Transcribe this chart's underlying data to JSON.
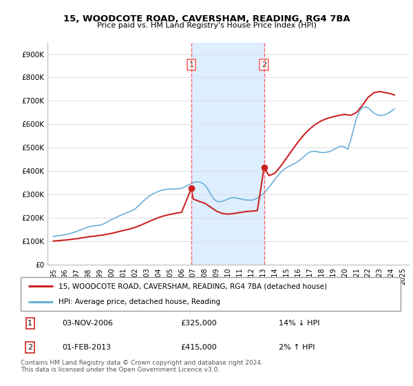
{
  "title": "15, WOODCOTE ROAD, CAVERSHAM, READING, RG4 7BA",
  "subtitle": "Price paid vs. HM Land Registry's House Price Index (HPI)",
  "legend_line1": "15, WOODCOTE ROAD, CAVERSHAM, READING, RG4 7BA (detached house)",
  "legend_line2": "HPI: Average price, detached house, Reading",
  "annotation1_date": "03-NOV-2006",
  "annotation1_price": "£325,000",
  "annotation1_hpi": "14% ↓ HPI",
  "annotation2_date": "01-FEB-2013",
  "annotation2_price": "£415,000",
  "annotation2_hpi": "2% ↑ HPI",
  "footnote": "Contains HM Land Registry data © Crown copyright and database right 2024.\nThis data is licensed under the Open Government Licence v3.0.",
  "vline1_x": 2006.84,
  "vline2_x": 2013.08,
  "sale1_x": 2006.84,
  "sale1_y": 325000,
  "sale2_x": 2013.08,
  "sale2_y": 415000,
  "hpi_color": "#6ab0d8",
  "price_color": "#cc2222",
  "vline_color": "#ff6666",
  "highlight_bg_color": "#ddeeff",
  "ylim_min": 0,
  "ylim_max": 950000,
  "xlim_min": 1994.5,
  "xlim_max": 2025.5,
  "yticks": [
    0,
    100000,
    200000,
    300000,
    400000,
    500000,
    600000,
    700000,
    800000,
    900000
  ],
  "ytick_labels": [
    "£0",
    "£100K",
    "£200K",
    "£300K",
    "£400K",
    "£500K",
    "£600K",
    "£700K",
    "£800K",
    "£900K"
  ],
  "xticks": [
    1995,
    1996,
    1997,
    1998,
    1999,
    2000,
    2001,
    2002,
    2003,
    2004,
    2005,
    2006,
    2007,
    2008,
    2009,
    2010,
    2011,
    2012,
    2013,
    2014,
    2015,
    2016,
    2017,
    2018,
    2019,
    2020,
    2021,
    2022,
    2023,
    2024,
    2025
  ],
  "hpi_years": [
    1995,
    1995.25,
    1995.5,
    1995.75,
    1996,
    1996.25,
    1996.5,
    1996.75,
    1997,
    1997.25,
    1997.5,
    1997.75,
    1998,
    1998.25,
    1998.5,
    1998.75,
    1999,
    1999.25,
    1999.5,
    1999.75,
    2000,
    2000.25,
    2000.5,
    2000.75,
    2001,
    2001.25,
    2001.5,
    2001.75,
    2002,
    2002.25,
    2002.5,
    2002.75,
    2003,
    2003.25,
    2003.5,
    2003.75,
    2004,
    2004.25,
    2004.5,
    2004.75,
    2005,
    2005.25,
    2005.5,
    2005.75,
    2006,
    2006.25,
    2006.5,
    2006.75,
    2007,
    2007.25,
    2007.5,
    2007.75,
    2008,
    2008.25,
    2008.5,
    2008.75,
    2009,
    2009.25,
    2009.5,
    2009.75,
    2010,
    2010.25,
    2010.5,
    2010.75,
    2011,
    2011.25,
    2011.5,
    2011.75,
    2012,
    2012.25,
    2012.5,
    2012.75,
    2013,
    2013.25,
    2013.5,
    2013.75,
    2014,
    2014.25,
    2014.5,
    2014.75,
    2015,
    2015.25,
    2015.5,
    2015.75,
    2016,
    2016.25,
    2016.5,
    2016.75,
    2017,
    2017.25,
    2017.5,
    2017.75,
    2018,
    2018.25,
    2018.5,
    2018.75,
    2019,
    2019.25,
    2019.5,
    2019.75,
    2020,
    2020.25,
    2020.5,
    2020.75,
    2021,
    2021.25,
    2021.5,
    2021.75,
    2022,
    2022.25,
    2022.5,
    2022.75,
    2023,
    2023.25,
    2023.5,
    2023.75,
    2024,
    2024.25
  ],
  "hpi_values": [
    120000,
    121500,
    123000,
    125000,
    127000,
    130000,
    133000,
    137000,
    141000,
    146000,
    151000,
    156000,
    160000,
    163000,
    165000,
    166000,
    168000,
    172000,
    178000,
    185000,
    192000,
    198000,
    204000,
    210000,
    215000,
    220000,
    225000,
    230000,
    237000,
    248000,
    260000,
    272000,
    283000,
    293000,
    301000,
    307000,
    312000,
    317000,
    320000,
    322000,
    323000,
    323000,
    323000,
    324000,
    326000,
    331000,
    338000,
    344000,
    350000,
    354000,
    353000,
    349000,
    339000,
    323000,
    301000,
    282000,
    270000,
    268000,
    270000,
    275000,
    281000,
    285000,
    286000,
    284000,
    281000,
    278000,
    276000,
    275000,
    275000,
    278000,
    284000,
    292000,
    302000,
    315000,
    330000,
    347000,
    363000,
    379000,
    393000,
    405000,
    414000,
    421000,
    427000,
    433000,
    441000,
    451000,
    462000,
    473000,
    481000,
    484000,
    484000,
    481000,
    479000,
    479000,
    481000,
    484000,
    490000,
    497000,
    503000,
    506000,
    503000,
    492000,
    530000,
    578000,
    625000,
    655000,
    670000,
    675000,
    670000,
    659000,
    648000,
    641000,
    638000,
    638000,
    642000,
    648000,
    656000,
    665000
  ],
  "price_years": [
    1995,
    1995.5,
    1996,
    1996.5,
    1997,
    1997.5,
    1998,
    1998.5,
    1999,
    1999.5,
    2000,
    2000.5,
    2001,
    2001.5,
    2002,
    2002.5,
    2003,
    2003.5,
    2004,
    2004.5,
    2005,
    2005.5,
    2006,
    2006.84,
    2007,
    2007.5,
    2008,
    2008.5,
    2009,
    2009.5,
    2010,
    2010.5,
    2011,
    2011.5,
    2012,
    2012.5,
    2013.08,
    2013.5,
    2014,
    2014.5,
    2015,
    2015.5,
    2016,
    2016.5,
    2017,
    2017.5,
    2018,
    2018.5,
    2019,
    2019.5,
    2020,
    2020.5,
    2021,
    2021.5,
    2022,
    2022.5,
    2023,
    2023.5,
    2024,
    2024.25
  ],
  "price_values": [
    100000,
    102000,
    104000,
    107000,
    110000,
    114000,
    118000,
    121000,
    124000,
    128000,
    133000,
    139000,
    145000,
    151000,
    158000,
    168000,
    179000,
    190000,
    200000,
    208000,
    214000,
    219000,
    223000,
    325000,
    280000,
    270000,
    262000,
    245000,
    228000,
    218000,
    215000,
    218000,
    222000,
    226000,
    228000,
    230000,
    415000,
    380000,
    390000,
    420000,
    455000,
    490000,
    525000,
    555000,
    580000,
    600000,
    615000,
    625000,
    632000,
    638000,
    642000,
    638000,
    650000,
    680000,
    715000,
    735000,
    740000,
    735000,
    730000,
    725000
  ]
}
